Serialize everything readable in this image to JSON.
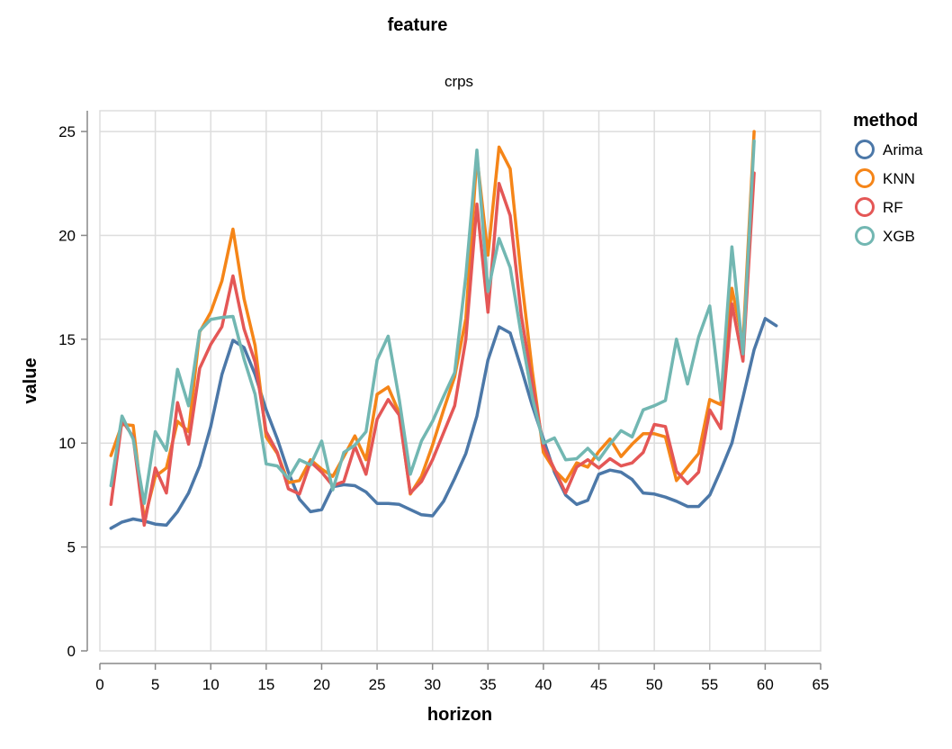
{
  "header": {
    "title": "feature"
  },
  "legend": {
    "title": "method",
    "placement": "right"
  },
  "chart_data": {
    "type": "line",
    "title": "crps",
    "xlabel": "horizon",
    "ylabel": "value",
    "xlim": [
      0,
      65
    ],
    "ylim": [
      0,
      26
    ],
    "x_ticks": [
      0,
      5,
      10,
      15,
      20,
      25,
      30,
      35,
      40,
      45,
      50,
      55,
      60,
      65
    ],
    "y_ticks": [
      0,
      5,
      10,
      15,
      20,
      25
    ],
    "grid": true,
    "legend_title": "method",
    "colors": {
      "Arima": "#4c78a8",
      "KNN": "#f58518",
      "RF": "#e45756",
      "XGB": "#72b7b2"
    },
    "series": [
      {
        "name": "Arima",
        "x": [
          1,
          2,
          3,
          4,
          5,
          6,
          7,
          8,
          9,
          10,
          11,
          12,
          13,
          14,
          15,
          16,
          17,
          18,
          19,
          20,
          21,
          22,
          23,
          24,
          25,
          26,
          27,
          28,
          29,
          30,
          31,
          32,
          33,
          34,
          35,
          36,
          37,
          38,
          39,
          40,
          41,
          42,
          43,
          44,
          45,
          46,
          47,
          48,
          49,
          50,
          51,
          52,
          53,
          54,
          55,
          56,
          57,
          58,
          59,
          60,
          61
        ],
        "values": [
          5.9,
          6.2,
          6.35,
          6.25,
          6.1,
          6.05,
          6.7,
          7.6,
          8.9,
          10.8,
          13.3,
          14.95,
          14.6,
          13.3,
          11.6,
          10.2,
          8.6,
          7.3,
          6.7,
          6.8,
          7.9,
          8.0,
          7.95,
          7.65,
          7.1,
          7.1,
          7.05,
          6.8,
          6.55,
          6.5,
          7.2,
          8.3,
          9.5,
          11.3,
          14.0,
          15.6,
          15.3,
          13.6,
          11.8,
          10.2,
          8.6,
          7.5,
          7.05,
          7.25,
          8.5,
          8.7,
          8.6,
          8.25,
          7.6,
          7.55,
          7.4,
          7.2,
          6.95,
          6.95,
          7.5,
          8.7,
          10.0,
          12.2,
          14.5,
          16.0,
          15.65
        ]
      },
      {
        "name": "KNN",
        "x": [
          1,
          2,
          3,
          4,
          5,
          6,
          7,
          8,
          9,
          10,
          11,
          12,
          13,
          14,
          15,
          16,
          17,
          18,
          19,
          20,
          21,
          22,
          23,
          24,
          25,
          26,
          27,
          28,
          29,
          30,
          31,
          32,
          33,
          34,
          35,
          36,
          37,
          38,
          39,
          40,
          41,
          42,
          43,
          44,
          45,
          46,
          47,
          48,
          49,
          50,
          51,
          52,
          53,
          54,
          55,
          56,
          57,
          58,
          59
        ],
        "values": [
          9.4,
          10.9,
          10.85,
          6.3,
          8.4,
          8.8,
          11.05,
          10.55,
          15.35,
          16.3,
          17.8,
          20.3,
          16.95,
          14.7,
          10.3,
          9.5,
          8.1,
          8.2,
          9.2,
          8.75,
          8.4,
          9.35,
          10.35,
          9.2,
          12.35,
          12.7,
          11.45,
          7.55,
          8.4,
          9.9,
          11.6,
          13.2,
          16.0,
          23.8,
          19.05,
          24.25,
          23.2,
          18.0,
          13.45,
          9.55,
          8.7,
          8.15,
          9.05,
          8.85,
          9.6,
          10.2,
          9.35,
          9.95,
          10.45,
          10.45,
          10.3,
          8.2,
          8.85,
          9.5,
          12.1,
          11.85,
          17.45,
          14.8,
          25.0
        ]
      },
      {
        "name": "RF",
        "x": [
          1,
          2,
          3,
          4,
          5,
          6,
          7,
          8,
          9,
          10,
          11,
          12,
          13,
          14,
          15,
          16,
          17,
          18,
          19,
          20,
          21,
          22,
          23,
          24,
          25,
          26,
          27,
          28,
          29,
          30,
          31,
          32,
          33,
          34,
          35,
          36,
          37,
          38,
          39,
          40,
          41,
          42,
          43,
          44,
          45,
          46,
          47,
          48,
          49,
          50,
          51,
          52,
          53,
          54,
          55,
          56,
          57,
          58,
          59
        ],
        "values": [
          7.05,
          11.1,
          10.3,
          6.05,
          8.8,
          7.6,
          11.95,
          9.95,
          13.6,
          14.75,
          15.6,
          18.05,
          15.5,
          13.9,
          10.55,
          9.55,
          7.8,
          7.55,
          9.1,
          8.6,
          7.95,
          8.15,
          9.85,
          8.5,
          11.15,
          12.1,
          11.35,
          7.6,
          8.15,
          9.2,
          10.5,
          11.8,
          15.0,
          21.5,
          16.3,
          22.5,
          20.95,
          16.15,
          12.9,
          9.85,
          8.75,
          7.6,
          8.85,
          9.2,
          8.8,
          9.25,
          8.9,
          9.05,
          9.55,
          10.9,
          10.8,
          8.65,
          8.05,
          8.6,
          11.6,
          10.7,
          16.7,
          13.95,
          23.0
        ]
      },
      {
        "name": "XGB",
        "x": [
          1,
          2,
          3,
          4,
          5,
          6,
          7,
          8,
          9,
          10,
          11,
          12,
          13,
          14,
          15,
          16,
          17,
          18,
          19,
          20,
          21,
          22,
          23,
          24,
          25,
          26,
          27,
          28,
          29,
          30,
          31,
          32,
          33,
          34,
          35,
          36,
          37,
          38,
          39,
          40,
          41,
          42,
          43,
          44,
          45,
          46,
          47,
          48,
          49,
          50,
          51,
          52,
          53,
          54,
          55,
          56,
          57,
          58,
          59
        ],
        "values": [
          7.95,
          11.3,
          10.2,
          7.1,
          10.55,
          9.65,
          13.55,
          11.8,
          15.4,
          15.95,
          16.05,
          16.1,
          14.05,
          12.35,
          9.0,
          8.9,
          8.3,
          9.2,
          8.95,
          10.1,
          7.75,
          9.55,
          9.9,
          10.55,
          14.0,
          15.15,
          12.1,
          8.5,
          10.1,
          11.05,
          12.25,
          13.4,
          18.05,
          24.1,
          17.3,
          19.85,
          18.45,
          15.2,
          12.2,
          10.0,
          10.25,
          9.2,
          9.25,
          9.75,
          9.2,
          9.95,
          10.6,
          10.3,
          11.6,
          11.8,
          12.05,
          15.0,
          12.85,
          15.1,
          16.6,
          12.1,
          19.45,
          14.3,
          24.55
        ]
      }
    ]
  }
}
